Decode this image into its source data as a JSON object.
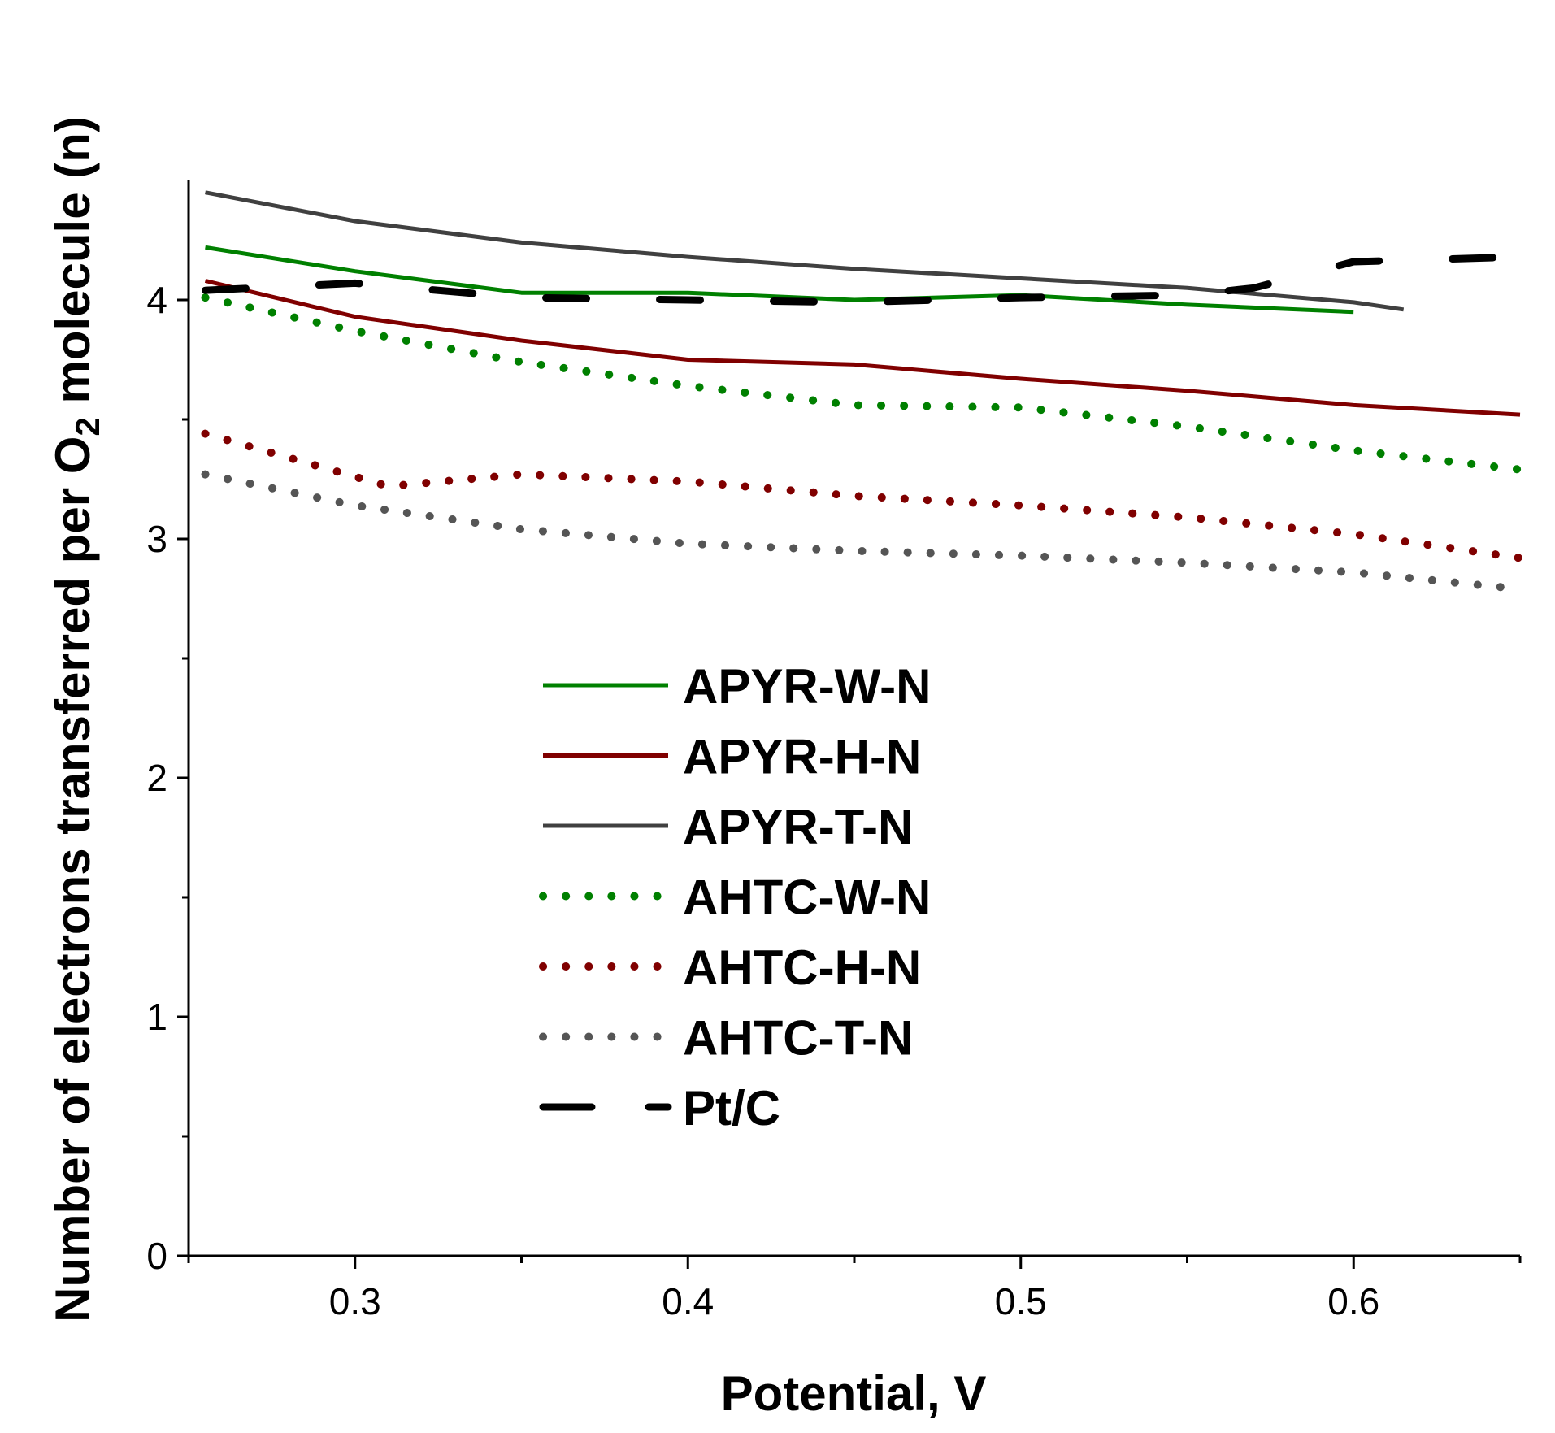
{
  "chart_data": {
    "type": "line",
    "title": "",
    "xlabel": "Potential, V",
    "ylabel_parts": {
      "before": "Number of electrons transferred per O",
      "subscript": "2",
      "after": " molecule (n)"
    },
    "xlim": [
      0.25,
      0.65
    ],
    "ylim": [
      0,
      4.5
    ],
    "x_ticks": [
      0.3,
      0.4,
      0.5,
      0.6
    ],
    "x_tick_labels": [
      "0.3",
      "0.4",
      "0.5",
      "0.6"
    ],
    "y_ticks": [
      0,
      1,
      2,
      3,
      4
    ],
    "y_tick_labels": [
      "0",
      "1",
      "2",
      "3",
      "4"
    ],
    "legend_position": "center",
    "series": [
      {
        "name": "APYR-W-N",
        "color": "#008000",
        "style": "solid",
        "x": [
          0.255,
          0.3,
          0.35,
          0.4,
          0.45,
          0.5,
          0.55,
          0.6
        ],
        "y": [
          4.22,
          4.12,
          4.03,
          4.03,
          4.0,
          4.02,
          3.98,
          3.95
        ]
      },
      {
        "name": "APYR-H-N",
        "color": "#800000",
        "style": "solid",
        "x": [
          0.255,
          0.3,
          0.35,
          0.4,
          0.45,
          0.5,
          0.55,
          0.6,
          0.65
        ],
        "y": [
          4.08,
          3.93,
          3.83,
          3.75,
          3.73,
          3.67,
          3.62,
          3.56,
          3.52
        ]
      },
      {
        "name": "APYR-T-N",
        "color": "#404040",
        "style": "solid",
        "x": [
          0.255,
          0.3,
          0.35,
          0.4,
          0.45,
          0.5,
          0.55,
          0.6,
          0.615
        ],
        "y": [
          4.45,
          4.33,
          4.24,
          4.18,
          4.13,
          4.09,
          4.05,
          3.99,
          3.96
        ]
      },
      {
        "name": "AHTC-W-N",
        "color": "#008000",
        "style": "dotted",
        "x": [
          0.255,
          0.3,
          0.35,
          0.4,
          0.45,
          0.5,
          0.55,
          0.6,
          0.65
        ],
        "y": [
          4.01,
          3.87,
          3.74,
          3.64,
          3.56,
          3.55,
          3.47,
          3.37,
          3.29
        ]
      },
      {
        "name": "AHTC-H-N",
        "color": "#800000",
        "style": "dotted",
        "x": [
          0.255,
          0.29,
          0.31,
          0.35,
          0.4,
          0.45,
          0.5,
          0.55,
          0.6,
          0.65
        ],
        "y": [
          3.44,
          3.3,
          3.22,
          3.27,
          3.24,
          3.18,
          3.14,
          3.09,
          3.02,
          2.92
        ]
      },
      {
        "name": "AHTC-T-N",
        "color": "#555555",
        "style": "dotted",
        "x": [
          0.255,
          0.3,
          0.35,
          0.4,
          0.45,
          0.5,
          0.55,
          0.6,
          0.65
        ],
        "y": [
          3.27,
          3.14,
          3.04,
          2.98,
          2.95,
          2.93,
          2.9,
          2.86,
          2.79
        ]
      },
      {
        "name": "Pt/C",
        "color": "#000000",
        "style": "dashed",
        "x": [
          0.255,
          0.3,
          0.35,
          0.4,
          0.45,
          0.5,
          0.55,
          0.57,
          0.6,
          0.65
        ],
        "y": [
          4.04,
          4.07,
          4.01,
          4.0,
          3.99,
          4.01,
          4.02,
          4.05,
          4.16,
          4.18
        ]
      }
    ]
  }
}
